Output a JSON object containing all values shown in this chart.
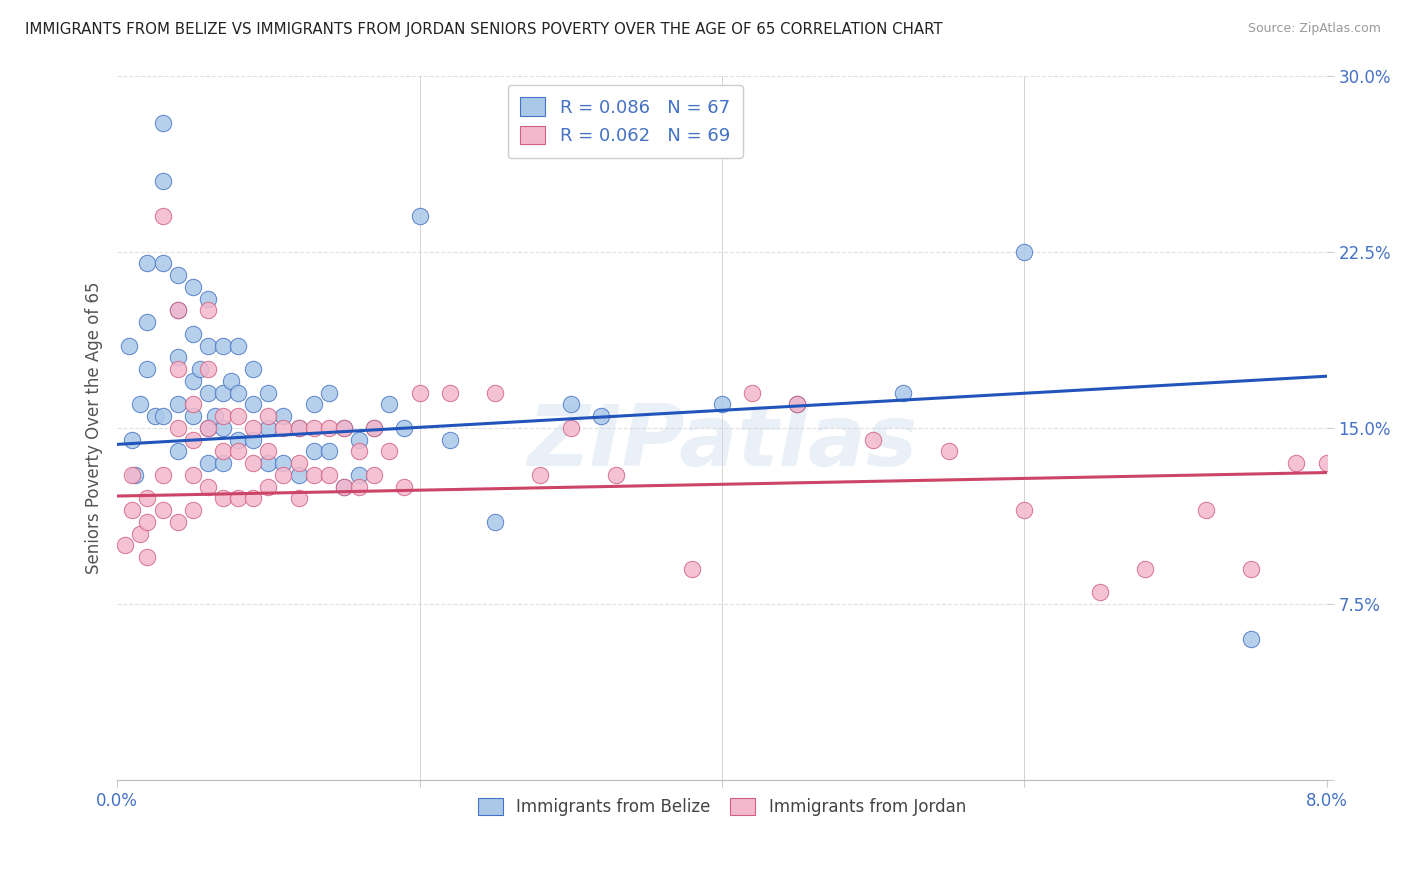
{
  "title": "IMMIGRANTS FROM BELIZE VS IMMIGRANTS FROM JORDAN SENIORS POVERTY OVER THE AGE OF 65 CORRELATION CHART",
  "source": "Source: ZipAtlas.com",
  "ylabel": "Seniors Poverty Over the Age of 65",
  "xlim": [
    0.0,
    0.08
  ],
  "ylim": [
    0.0,
    0.3
  ],
  "belize_color": "#aac8e8",
  "jordan_color": "#f4b8cc",
  "belize_edge_color": "#4472c4",
  "jordan_edge_color": "#d06080",
  "belize_line_color": "#2255bb",
  "jordan_line_color": "#cc4466",
  "belize_R": 0.086,
  "belize_N": 67,
  "jordan_R": 0.062,
  "jordan_N": 69,
  "belize_scatter_x": [
    0.0008,
    0.001,
    0.0012,
    0.0015,
    0.002,
    0.002,
    0.002,
    0.0025,
    0.003,
    0.003,
    0.003,
    0.003,
    0.004,
    0.004,
    0.004,
    0.004,
    0.004,
    0.005,
    0.005,
    0.005,
    0.005,
    0.0055,
    0.006,
    0.006,
    0.006,
    0.006,
    0.006,
    0.0065,
    0.007,
    0.007,
    0.007,
    0.007,
    0.0075,
    0.008,
    0.008,
    0.008,
    0.009,
    0.009,
    0.009,
    0.01,
    0.01,
    0.01,
    0.011,
    0.011,
    0.012,
    0.012,
    0.013,
    0.013,
    0.014,
    0.014,
    0.015,
    0.015,
    0.016,
    0.016,
    0.017,
    0.018,
    0.019,
    0.02,
    0.022,
    0.025,
    0.03,
    0.032,
    0.04,
    0.045,
    0.052,
    0.06,
    0.075
  ],
  "belize_scatter_y": [
    0.185,
    0.145,
    0.13,
    0.16,
    0.22,
    0.195,
    0.175,
    0.155,
    0.28,
    0.255,
    0.22,
    0.155,
    0.215,
    0.2,
    0.18,
    0.16,
    0.14,
    0.21,
    0.19,
    0.17,
    0.155,
    0.175,
    0.205,
    0.185,
    0.165,
    0.15,
    0.135,
    0.155,
    0.185,
    0.165,
    0.15,
    0.135,
    0.17,
    0.185,
    0.165,
    0.145,
    0.175,
    0.16,
    0.145,
    0.165,
    0.15,
    0.135,
    0.155,
    0.135,
    0.15,
    0.13,
    0.16,
    0.14,
    0.165,
    0.14,
    0.15,
    0.125,
    0.145,
    0.13,
    0.15,
    0.16,
    0.15,
    0.24,
    0.145,
    0.11,
    0.16,
    0.155,
    0.16,
    0.16,
    0.165,
    0.225,
    0.06
  ],
  "jordan_scatter_x": [
    0.0005,
    0.001,
    0.001,
    0.0015,
    0.002,
    0.002,
    0.002,
    0.003,
    0.003,
    0.003,
    0.004,
    0.004,
    0.004,
    0.004,
    0.005,
    0.005,
    0.005,
    0.005,
    0.006,
    0.006,
    0.006,
    0.006,
    0.007,
    0.007,
    0.007,
    0.008,
    0.008,
    0.008,
    0.009,
    0.009,
    0.009,
    0.01,
    0.01,
    0.01,
    0.011,
    0.011,
    0.012,
    0.012,
    0.012,
    0.013,
    0.013,
    0.014,
    0.014,
    0.015,
    0.015,
    0.016,
    0.016,
    0.017,
    0.017,
    0.018,
    0.019,
    0.02,
    0.022,
    0.025,
    0.028,
    0.03,
    0.033,
    0.038,
    0.042,
    0.045,
    0.05,
    0.055,
    0.06,
    0.065,
    0.068,
    0.072,
    0.075,
    0.078,
    0.08
  ],
  "jordan_scatter_y": [
    0.1,
    0.13,
    0.115,
    0.105,
    0.12,
    0.11,
    0.095,
    0.24,
    0.13,
    0.115,
    0.2,
    0.175,
    0.15,
    0.11,
    0.16,
    0.145,
    0.13,
    0.115,
    0.2,
    0.175,
    0.15,
    0.125,
    0.155,
    0.14,
    0.12,
    0.155,
    0.14,
    0.12,
    0.15,
    0.135,
    0.12,
    0.155,
    0.14,
    0.125,
    0.15,
    0.13,
    0.15,
    0.135,
    0.12,
    0.15,
    0.13,
    0.15,
    0.13,
    0.15,
    0.125,
    0.14,
    0.125,
    0.15,
    0.13,
    0.14,
    0.125,
    0.165,
    0.165,
    0.165,
    0.13,
    0.15,
    0.13,
    0.09,
    0.165,
    0.16,
    0.145,
    0.14,
    0.115,
    0.08,
    0.09,
    0.115,
    0.09,
    0.135,
    0.135
  ],
  "watermark": "ZIPatlas",
  "background_color": "#ffffff",
  "grid_color": "#e0e0e0",
  "title_color": "#222222",
  "label_color": "#555555",
  "tick_color": "#4472c4",
  "belize_line_y0": 0.143,
  "belize_line_y1": 0.172,
  "jordan_line_y0": 0.121,
  "jordan_line_y1": 0.131
}
